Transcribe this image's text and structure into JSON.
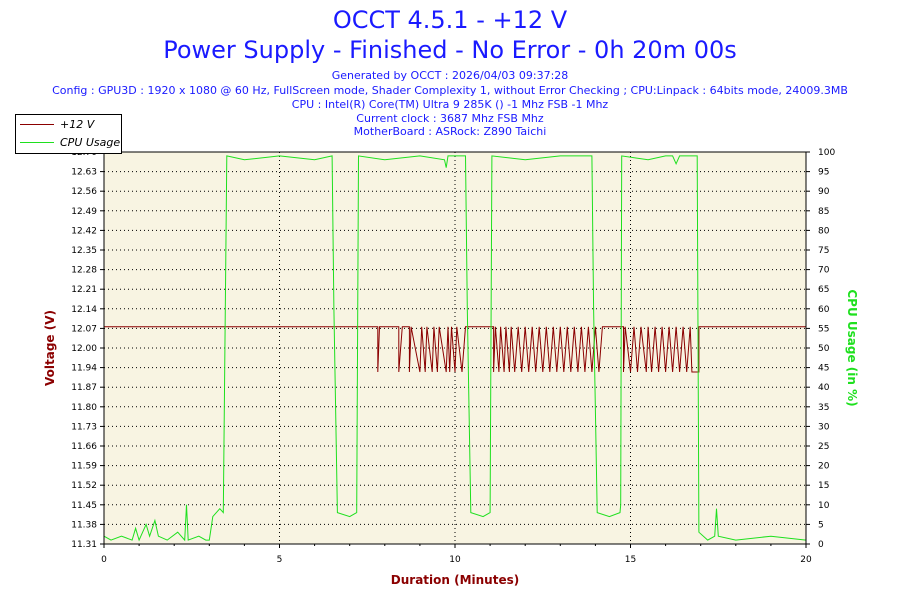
{
  "header": {
    "title_line1": "OCCT 4.5.1 - +12 V",
    "title_line2": "Power Supply - Finished - No Error - 0h 20m 00s",
    "info_lines": [
      "Generated by OCCT : 2026/04/03 09:37:28",
      "Config : GPU3D : 1920 x 1080 @ 60 Hz, FullScreen mode, Shader Complexity 1, without Error Checking ; CPU:Linpack : 64bits mode, 24009.3MB",
      "CPU : Intel(R) Core(TM) Ultra 9 285K () -1 Mhz FSB -1 Mhz",
      "Current clock : 3687 Mhz FSB  Mhz",
      "MotherBoard : ASRock: Z890 Taichi"
    ]
  },
  "chart_data": {
    "type": "line",
    "xlabel": "Duration (Minutes)",
    "ylabel": "Voltage (V)",
    "y2label": "CPU Usage (in %)",
    "xlim": [
      0,
      20
    ],
    "ylim": [
      11.31,
      12.7
    ],
    "y2lim": [
      0,
      100
    ],
    "x_ticks": [
      "0",
      "5",
      "10",
      "15",
      "20"
    ],
    "y_ticks": [
      "11.31",
      "11.38",
      "11.45",
      "11.52",
      "11.59",
      "11.66",
      "11.73",
      "11.80",
      "11.87",
      "11.94",
      "12.00",
      "12.07",
      "12.14",
      "12.21",
      "12.28",
      "12.35",
      "12.42",
      "12.49",
      "12.56",
      "12.63",
      "12.70"
    ],
    "y2_ticks": [
      "0",
      "5",
      "10",
      "15",
      "20",
      "25",
      "30",
      "35",
      "40",
      "45",
      "50",
      "55",
      "60",
      "65",
      "70",
      "75",
      "80",
      "85",
      "90",
      "95",
      "100"
    ],
    "grid": true,
    "legend_position": "top-left",
    "series": [
      {
        "name": "+12 V",
        "axis": "left",
        "color": "#8b0000",
        "points": [
          [
            0,
            12.08
          ],
          [
            7.8,
            12.08
          ],
          [
            7.8,
            11.92
          ],
          [
            7.85,
            12.08
          ],
          [
            8.4,
            12.08
          ],
          [
            8.4,
            11.92
          ],
          [
            8.5,
            12.08
          ],
          [
            8.7,
            12.08
          ],
          [
            8.7,
            11.92
          ],
          [
            8.75,
            12.08
          ],
          [
            9.0,
            11.92
          ],
          [
            9.05,
            12.08
          ],
          [
            9.15,
            11.92
          ],
          [
            9.2,
            12.08
          ],
          [
            9.35,
            11.92
          ],
          [
            9.4,
            12.08
          ],
          [
            9.5,
            11.92
          ],
          [
            9.55,
            12.08
          ],
          [
            9.75,
            11.92
          ],
          [
            9.8,
            12.08
          ],
          [
            9.85,
            11.92
          ],
          [
            9.9,
            12.08
          ],
          [
            10.0,
            11.92
          ],
          [
            10.05,
            12.08
          ],
          [
            10.2,
            11.92
          ],
          [
            10.3,
            12.08
          ],
          [
            11.1,
            12.08
          ],
          [
            11.1,
            11.92
          ],
          [
            11.15,
            12.08
          ],
          [
            11.25,
            11.92
          ],
          [
            11.3,
            12.08
          ],
          [
            11.4,
            11.92
          ],
          [
            11.45,
            12.08
          ],
          [
            11.55,
            11.92
          ],
          [
            11.6,
            12.08
          ],
          [
            11.7,
            11.92
          ],
          [
            11.8,
            12.08
          ],
          [
            11.9,
            11.92
          ],
          [
            12.0,
            12.08
          ],
          [
            12.1,
            11.92
          ],
          [
            12.2,
            12.08
          ],
          [
            12.3,
            11.92
          ],
          [
            12.4,
            12.08
          ],
          [
            12.5,
            11.92
          ],
          [
            12.6,
            12.08
          ],
          [
            12.7,
            11.92
          ],
          [
            12.8,
            12.08
          ],
          [
            12.9,
            11.92
          ],
          [
            13.0,
            12.08
          ],
          [
            13.1,
            11.92
          ],
          [
            13.2,
            12.08
          ],
          [
            13.3,
            11.92
          ],
          [
            13.4,
            12.08
          ],
          [
            13.5,
            11.92
          ],
          [
            13.6,
            12.08
          ],
          [
            13.7,
            11.92
          ],
          [
            13.8,
            12.08
          ],
          [
            13.9,
            11.92
          ],
          [
            14.0,
            12.08
          ],
          [
            14.1,
            11.92
          ],
          [
            14.2,
            12.08
          ],
          [
            14.8,
            12.08
          ],
          [
            14.8,
            11.92
          ],
          [
            14.85,
            12.08
          ],
          [
            15.0,
            11.92
          ],
          [
            15.1,
            12.08
          ],
          [
            15.2,
            11.92
          ],
          [
            15.3,
            12.08
          ],
          [
            15.45,
            11.92
          ],
          [
            15.5,
            12.08
          ],
          [
            15.6,
            11.92
          ],
          [
            15.7,
            12.08
          ],
          [
            15.8,
            11.92
          ],
          [
            15.9,
            12.08
          ],
          [
            16.0,
            11.92
          ],
          [
            16.1,
            12.08
          ],
          [
            16.2,
            11.92
          ],
          [
            16.3,
            12.08
          ],
          [
            16.4,
            11.92
          ],
          [
            16.5,
            12.08
          ],
          [
            16.6,
            11.92
          ],
          [
            16.7,
            12.08
          ],
          [
            16.75,
            11.92
          ],
          [
            16.8,
            11.92
          ],
          [
            16.85,
            11.92
          ],
          [
            16.95,
            11.92
          ],
          [
            16.95,
            12.08
          ],
          [
            20,
            12.08
          ]
        ]
      },
      {
        "name": "CPU Usage",
        "axis": "right",
        "color": "#1ee01e",
        "points": [
          [
            0,
            2
          ],
          [
            0.2,
            1
          ],
          [
            0.5,
            2
          ],
          [
            0.8,
            1
          ],
          [
            0.9,
            4
          ],
          [
            1.0,
            1
          ],
          [
            1.2,
            5
          ],
          [
            1.3,
            2
          ],
          [
            1.45,
            6
          ],
          [
            1.55,
            2
          ],
          [
            1.8,
            1
          ],
          [
            2.1,
            3
          ],
          [
            2.3,
            1
          ],
          [
            2.35,
            10
          ],
          [
            2.4,
            1
          ],
          [
            2.7,
            2
          ],
          [
            2.9,
            1
          ],
          [
            3.0,
            1
          ],
          [
            3.1,
            7
          ],
          [
            3.3,
            9
          ],
          [
            3.4,
            8
          ],
          [
            3.5,
            99
          ],
          [
            4.0,
            98
          ],
          [
            5.0,
            99
          ],
          [
            6.0,
            98
          ],
          [
            6.5,
            99
          ],
          [
            6.55,
            60
          ],
          [
            6.65,
            8
          ],
          [
            7.0,
            7
          ],
          [
            7.2,
            8
          ],
          [
            7.25,
            99
          ],
          [
            8.0,
            98
          ],
          [
            9.0,
            99
          ],
          [
            9.7,
            98
          ],
          [
            9.75,
            96
          ],
          [
            9.8,
            99
          ],
          [
            10.3,
            99
          ],
          [
            10.35,
            60
          ],
          [
            10.45,
            8
          ],
          [
            10.8,
            7
          ],
          [
            11.0,
            8
          ],
          [
            11.05,
            99
          ],
          [
            12.0,
            98
          ],
          [
            13.0,
            99
          ],
          [
            13.9,
            99
          ],
          [
            13.95,
            60
          ],
          [
            14.05,
            8
          ],
          [
            14.4,
            7
          ],
          [
            14.7,
            8
          ],
          [
            14.72,
            10
          ],
          [
            14.75,
            99
          ],
          [
            15.5,
            98
          ],
          [
            16.0,
            99
          ],
          [
            16.2,
            99
          ],
          [
            16.3,
            97
          ],
          [
            16.4,
            99
          ],
          [
            16.9,
            99
          ],
          [
            16.95,
            3
          ],
          [
            17.2,
            1
          ],
          [
            17.4,
            2
          ],
          [
            17.45,
            9
          ],
          [
            17.5,
            2
          ],
          [
            18.0,
            1
          ],
          [
            19.0,
            2
          ],
          [
            20.0,
            1
          ]
        ]
      }
    ]
  }
}
